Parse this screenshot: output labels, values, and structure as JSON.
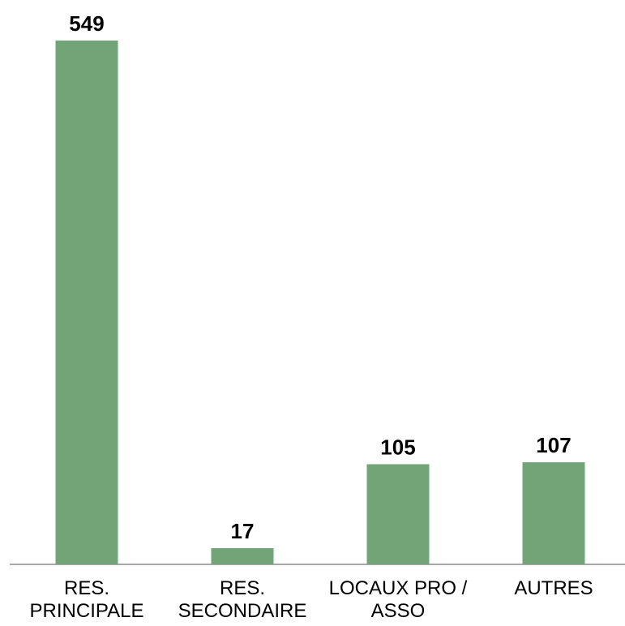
{
  "chart_data": {
    "type": "bar",
    "categories": [
      "RES. PRINCIPALE",
      "RES. SECONDAIRE",
      "LOCAUX PRO / ASSO",
      "AUTRES"
    ],
    "values": [
      549,
      17,
      105,
      107
    ],
    "color": "#73a478"
  }
}
